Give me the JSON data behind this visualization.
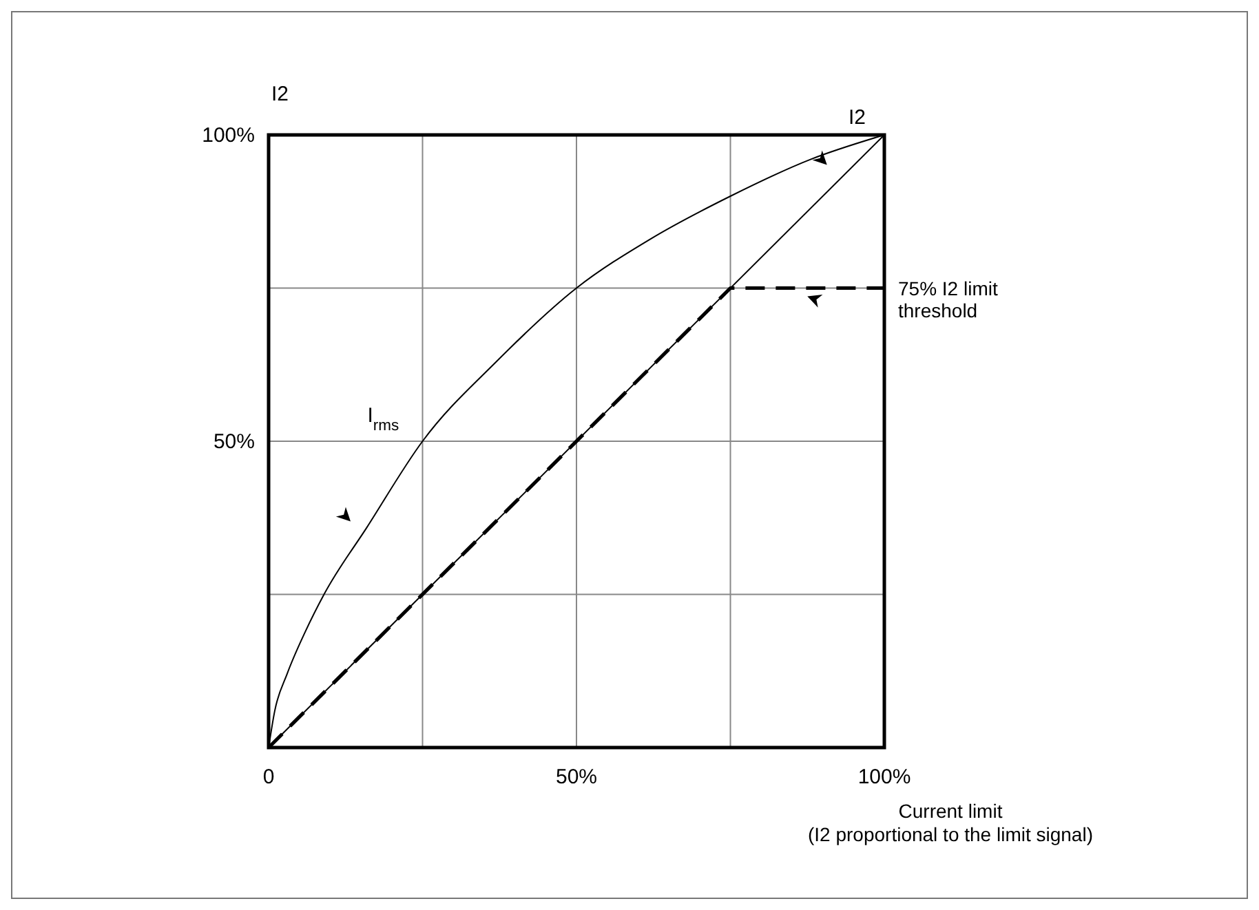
{
  "chart_data": {
    "type": "line",
    "xlabel": "Current limit\n(I2 proportional to the limit signal)",
    "ylabel": "I2",
    "xlim": [
      0,
      100
    ],
    "ylim": [
      0,
      100
    ],
    "xticks": [
      {
        "value": 0,
        "label": "0"
      },
      {
        "value": 25,
        "label": null
      },
      {
        "value": 50,
        "label": "50%"
      },
      {
        "value": 75,
        "label": null
      },
      {
        "value": 100,
        "label": "100%"
      }
    ],
    "yticks": [
      {
        "value": 0,
        "label": null
      },
      {
        "value": 25,
        "label": null
      },
      {
        "value": 50,
        "label": "50%"
      },
      {
        "value": 75,
        "label": null
      },
      {
        "value": 100,
        "label": "100%"
      }
    ],
    "grid": true,
    "legend": false,
    "marker": "none",
    "series": [
      {
        "name": "I$_{rms}$",
        "color": "#000000",
        "line_style": "solid",
        "x": [
          0,
          1,
          3,
          6,
          9,
          16,
          25,
          37,
          50,
          62,
          75,
          88,
          100
        ],
        "values": [
          0,
          6,
          12,
          19,
          25,
          36,
          50,
          63,
          75,
          83,
          90,
          96,
          100
        ]
      },
      {
        "name": "I2",
        "color": "#000000",
        "line_style": "solid",
        "x": [
          0,
          100
        ],
        "values": [
          0,
          100
        ]
      },
      {
        "name": "75% I2 limit threshold",
        "color": "#000000",
        "line_style": "dashed",
        "x": [
          0,
          75,
          100
        ],
        "values": [
          0,
          75,
          75
        ]
      }
    ]
  }
}
